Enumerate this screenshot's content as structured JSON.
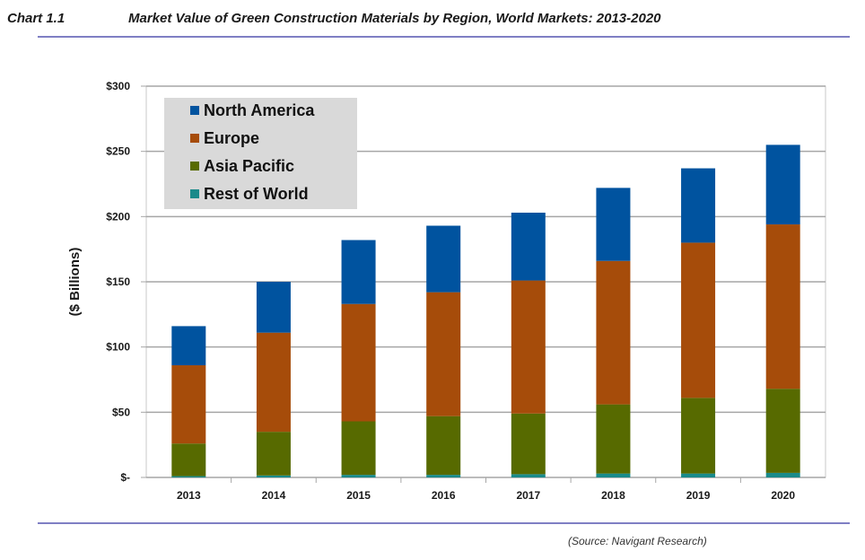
{
  "header": {
    "chart_label": "Chart 1.1",
    "chart_title": "Market Value of Green Construction Materials by Region, World Markets: 2013-2020"
  },
  "source": "(Source: Navigant Research)",
  "colors": {
    "North America": "#00539f",
    "Europe": "#a64c0a",
    "Asia Pacific": "#576a00",
    "Rest of World": "#1a8a8a",
    "grid": "#a6a6a6",
    "legend_bg": "#d9d9d9",
    "rule": "#7f7fc4"
  },
  "chart_data": {
    "type": "bar",
    "stacked": true,
    "title": "Market Value of Green Construction Materials by Region, World Markets: 2013-2020",
    "xlabel": "",
    "ylabel": "($ Billions)",
    "ylim": [
      0,
      300
    ],
    "yticks": [
      0,
      50,
      100,
      150,
      200,
      250,
      300
    ],
    "ytick_labels": [
      "$-",
      "$50",
      "$100",
      "$150",
      "$200",
      "$250",
      "$300"
    ],
    "grid": true,
    "legend_position": "top-left",
    "categories": [
      "2013",
      "2014",
      "2015",
      "2016",
      "2017",
      "2018",
      "2019",
      "2020"
    ],
    "series": [
      {
        "name": "Rest of World",
        "values": [
          1,
          1.5,
          2,
          2,
          2.5,
          3,
          3,
          3.5
        ]
      },
      {
        "name": "Asia Pacific",
        "values": [
          25,
          33.5,
          41,
          45,
          46.5,
          53,
          58,
          64.5
        ]
      },
      {
        "name": "Europe",
        "values": [
          60,
          76,
          90,
          95,
          102,
          110,
          119,
          126
        ]
      },
      {
        "name": "North America",
        "values": [
          30,
          39,
          49,
          51,
          52,
          56,
          57,
          61
        ]
      }
    ],
    "legend": [
      "North America",
      "Europe",
      "Asia Pacific",
      "Rest of World"
    ]
  }
}
